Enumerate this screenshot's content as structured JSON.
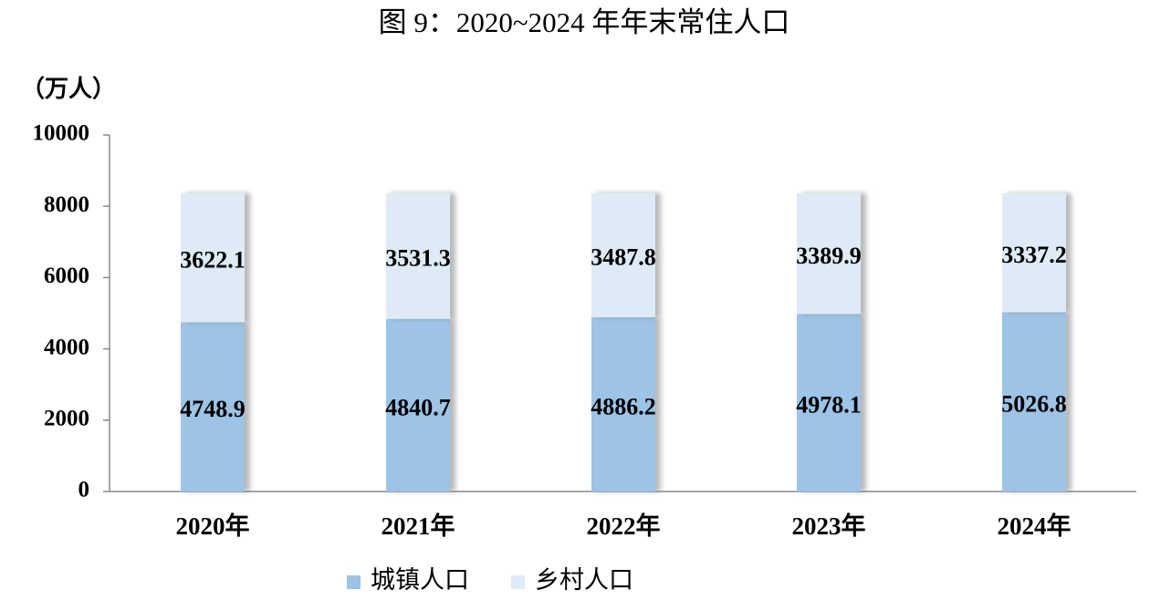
{
  "chart_data": {
    "type": "stacked_bar",
    "title": "图 9：2020~2024 年年末常住人口",
    "y_label": "（万人）",
    "categories": [
      "2020年",
      "2021年",
      "2022年",
      "2023年",
      "2024年"
    ],
    "series": [
      {
        "name": "城镇人口",
        "color": "#9dc3e6",
        "values": [
          4748.9,
          4840.7,
          4886.2,
          4978.1,
          5026.8
        ]
      },
      {
        "name": "乡村人口",
        "color": "#deebf7",
        "values": [
          3622.1,
          3531.3,
          3487.8,
          3389.9,
          3337.2
        ]
      }
    ],
    "ylim": [
      0,
      10000
    ],
    "yticks": [
      0,
      2000,
      4000,
      6000,
      8000,
      10000
    ]
  }
}
